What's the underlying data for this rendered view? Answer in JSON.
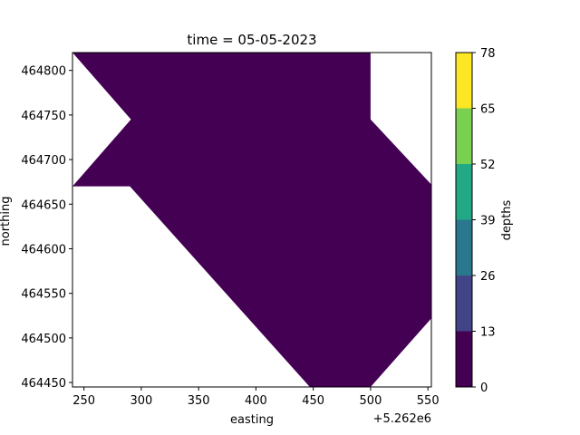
{
  "chart_data": {
    "type": "contourf",
    "title": "time = 05-05-2023",
    "xlabel": "easting",
    "ylabel": "northing",
    "x_offset_label": "+5.262e6",
    "xlim": [
      240,
      553
    ],
    "ylim": [
      464445,
      464820
    ],
    "x_ticks": [
      250,
      300,
      350,
      400,
      450,
      500,
      550
    ],
    "y_ticks": [
      464450,
      464500,
      464550,
      464600,
      464650,
      464700,
      464750,
      464800
    ],
    "filled_region": {
      "level": "0-13",
      "polygon": [
        [
          240,
          464820
        ],
        [
          500,
          464820
        ],
        [
          500,
          464745
        ],
        [
          553,
          464672
        ],
        [
          553,
          464522
        ],
        [
          500,
          464445
        ],
        [
          447,
          464445
        ],
        [
          290,
          464670
        ],
        [
          240,
          464670
        ],
        [
          291,
          464745
        ],
        [
          240,
          464820
        ]
      ]
    },
    "colorbar": {
      "label": "depths",
      "levels": [
        0,
        13,
        26,
        39,
        52,
        65,
        78
      ],
      "colors": [
        "#440154",
        "#414487",
        "#2a788e",
        "#22a884",
        "#7ad151",
        "#fde725"
      ]
    }
  }
}
